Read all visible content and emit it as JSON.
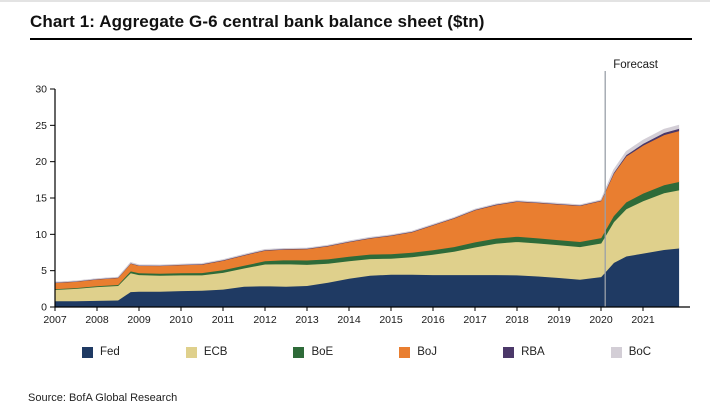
{
  "title": "Chart 1: Aggregate G-6 central bank balance sheet ($tn)",
  "source": "Source: BofA Global Research",
  "forecast_label": "Forecast",
  "colors": {
    "forecast_line": "#9aa0a8",
    "axis": "#000000"
  },
  "chart_data": {
    "type": "area",
    "stacked": true,
    "title": "Aggregate G-6 central bank balance sheet ($tn)",
    "xlabel": "",
    "ylabel": "",
    "xlim": [
      2007,
      2021.85
    ],
    "ylim": [
      0,
      30
    ],
    "yticks": [
      0,
      5,
      10,
      15,
      20,
      25,
      30
    ],
    "xticks": [
      2007,
      2008,
      2009,
      2010,
      2011,
      2012,
      2013,
      2014,
      2015,
      2016,
      2017,
      2018,
      2019,
      2020,
      2021
    ],
    "grid": false,
    "legend_position": "bottom",
    "forecast_x": 2020.1,
    "x": [
      2007.0,
      2007.5,
      2008.0,
      2008.5,
      2008.8,
      2009.0,
      2009.5,
      2010.0,
      2010.5,
      2011.0,
      2011.5,
      2012.0,
      2012.5,
      2013.0,
      2013.5,
      2014.0,
      2014.5,
      2015.0,
      2015.5,
      2016.0,
      2016.5,
      2017.0,
      2017.5,
      2018.0,
      2018.5,
      2019.0,
      2019.5,
      2020.0,
      2020.3,
      2020.6,
      2021.0,
      2021.5,
      2021.85
    ],
    "series": [
      {
        "name": "Fed",
        "color": "#1f3a63",
        "values": [
          0.85,
          0.85,
          0.9,
          0.95,
          2.1,
          2.15,
          2.15,
          2.25,
          2.3,
          2.45,
          2.85,
          2.9,
          2.85,
          2.95,
          3.4,
          3.95,
          4.35,
          4.5,
          4.5,
          4.45,
          4.45,
          4.45,
          4.45,
          4.4,
          4.25,
          4.05,
          3.8,
          4.15,
          6.1,
          7.0,
          7.4,
          7.9,
          8.1
        ]
      },
      {
        "name": "ECB",
        "color": "#dfd08c",
        "values": [
          1.55,
          1.7,
          1.9,
          2.0,
          2.6,
          2.3,
          2.2,
          2.15,
          2.1,
          2.3,
          2.5,
          3.0,
          3.1,
          2.9,
          2.6,
          2.4,
          2.3,
          2.2,
          2.4,
          2.8,
          3.2,
          3.8,
          4.3,
          4.6,
          4.55,
          4.5,
          4.5,
          4.65,
          5.6,
          6.5,
          7.2,
          7.8,
          8.0
        ]
      },
      {
        "name": "BoE",
        "color": "#2e6b39",
        "values": [
          0.1,
          0.11,
          0.12,
          0.13,
          0.25,
          0.25,
          0.28,
          0.3,
          0.32,
          0.35,
          0.38,
          0.45,
          0.55,
          0.6,
          0.6,
          0.62,
          0.62,
          0.62,
          0.62,
          0.62,
          0.65,
          0.7,
          0.72,
          0.72,
          0.7,
          0.7,
          0.7,
          0.72,
          0.85,
          0.95,
          1.05,
          1.1,
          1.15
        ]
      },
      {
        "name": "BoJ",
        "color": "#e97e30",
        "values": [
          0.85,
          0.85,
          0.9,
          0.95,
          1.05,
          1.0,
          1.05,
          1.1,
          1.15,
          1.3,
          1.4,
          1.45,
          1.45,
          1.55,
          1.8,
          2.0,
          2.2,
          2.5,
          2.8,
          3.4,
          3.9,
          4.4,
          4.6,
          4.8,
          4.85,
          4.9,
          4.95,
          5.1,
          5.8,
          6.3,
          6.6,
          6.9,
          7.0
        ]
      },
      {
        "name": "RBA",
        "color": "#4b3869",
        "values": [
          0.05,
          0.05,
          0.05,
          0.05,
          0.06,
          0.05,
          0.05,
          0.05,
          0.06,
          0.07,
          0.07,
          0.07,
          0.07,
          0.07,
          0.07,
          0.07,
          0.07,
          0.07,
          0.07,
          0.07,
          0.07,
          0.07,
          0.07,
          0.07,
          0.07,
          0.07,
          0.07,
          0.07,
          0.15,
          0.2,
          0.25,
          0.3,
          0.3
        ]
      },
      {
        "name": "BoC",
        "color": "#d3ced6",
        "values": [
          0.03,
          0.03,
          0.03,
          0.03,
          0.08,
          0.06,
          0.05,
          0.05,
          0.05,
          0.05,
          0.05,
          0.05,
          0.05,
          0.05,
          0.05,
          0.05,
          0.05,
          0.05,
          0.05,
          0.05,
          0.05,
          0.05,
          0.05,
          0.05,
          0.05,
          0.05,
          0.05,
          0.05,
          0.35,
          0.45,
          0.45,
          0.45,
          0.45
        ]
      }
    ]
  }
}
